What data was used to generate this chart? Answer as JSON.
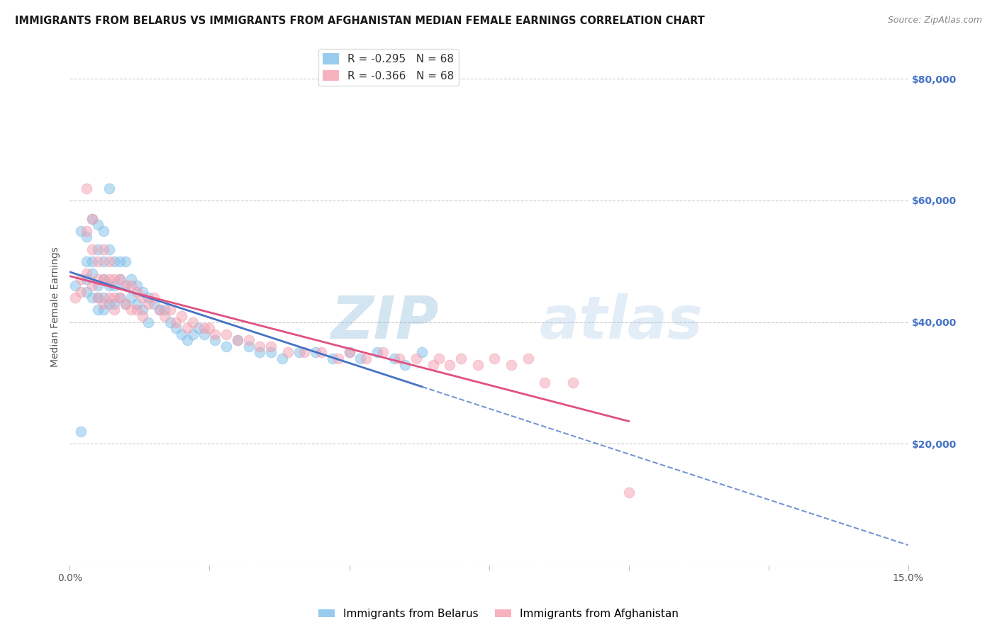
{
  "title": "IMMIGRANTS FROM BELARUS VS IMMIGRANTS FROM AFGHANISTAN MEDIAN FEMALE EARNINGS CORRELATION CHART",
  "source": "Source: ZipAtlas.com",
  "ylabel": "Median Female Earnings",
  "yticks": [
    0,
    20000,
    40000,
    60000,
    80000
  ],
  "ytick_labels": [
    "",
    "$20,000",
    "$40,000",
    "$60,000",
    "$80,000"
  ],
  "xlim": [
    0.0,
    0.15
  ],
  "ylim": [
    0,
    85000
  ],
  "watermark": "ZIPatlas",
  "belarus_color": "#7fbfea",
  "afghanistan_color": "#f4a0b0",
  "belarus_line_color": "#4472c4",
  "afghanistan_line_color": "#e05080",
  "scatter_alpha": 0.5,
  "scatter_size": 110,
  "legend_r1": "R = -0.295   N = 68",
  "legend_r2": "R = -0.366   N = 68",
  "legend_c1": "#7fbfea",
  "legend_c2": "#f4a0b0",
  "bottom_legend1": "Immigrants from Belarus",
  "bottom_legend2": "Immigrants from Afghanistan",
  "title_fontsize": 10.5,
  "source_fontsize": 9,
  "ylabel_fontsize": 10,
  "ytick_fontsize": 10,
  "xtick_fontsize": 10,
  "legend_fontsize": 11,
  "background_color": "#ffffff",
  "grid_color": "#cccccc",
  "right_yaxis_color": "#4472c4",
  "watermark_color": "#b0cce8",
  "watermark_alpha": 0.3,
  "belarus_x": [
    0.001,
    0.002,
    0.002,
    0.003,
    0.003,
    0.003,
    0.003,
    0.004,
    0.004,
    0.004,
    0.004,
    0.005,
    0.005,
    0.005,
    0.005,
    0.005,
    0.006,
    0.006,
    0.006,
    0.006,
    0.006,
    0.007,
    0.007,
    0.007,
    0.007,
    0.008,
    0.008,
    0.008,
    0.009,
    0.009,
    0.009,
    0.01,
    0.01,
    0.01,
    0.011,
    0.011,
    0.012,
    0.012,
    0.013,
    0.013,
    0.014,
    0.014,
    0.015,
    0.016,
    0.017,
    0.018,
    0.019,
    0.02,
    0.021,
    0.022,
    0.023,
    0.024,
    0.026,
    0.028,
    0.03,
    0.032,
    0.034,
    0.036,
    0.038,
    0.041,
    0.044,
    0.047,
    0.05,
    0.052,
    0.055,
    0.058,
    0.06,
    0.063
  ],
  "belarus_y": [
    46000,
    22000,
    55000,
    47000,
    45000,
    50000,
    54000,
    57000,
    48000,
    44000,
    50000,
    56000,
    52000,
    46000,
    44000,
    42000,
    55000,
    50000,
    47000,
    44000,
    42000,
    62000,
    52000,
    46000,
    43000,
    50000,
    46000,
    43000,
    50000,
    47000,
    44000,
    50000,
    46000,
    43000,
    47000,
    44000,
    46000,
    43000,
    45000,
    42000,
    44000,
    40000,
    43000,
    42000,
    42000,
    40000,
    39000,
    38000,
    37000,
    38000,
    39000,
    38000,
    37000,
    36000,
    37000,
    36000,
    35000,
    35000,
    34000,
    35000,
    35000,
    34000,
    35000,
    34000,
    35000,
    34000,
    33000,
    35000
  ],
  "afghanistan_x": [
    0.001,
    0.002,
    0.002,
    0.003,
    0.003,
    0.003,
    0.004,
    0.004,
    0.004,
    0.005,
    0.005,
    0.005,
    0.006,
    0.006,
    0.006,
    0.007,
    0.007,
    0.007,
    0.008,
    0.008,
    0.008,
    0.009,
    0.009,
    0.01,
    0.01,
    0.011,
    0.011,
    0.012,
    0.012,
    0.013,
    0.013,
    0.014,
    0.015,
    0.016,
    0.017,
    0.018,
    0.019,
    0.02,
    0.021,
    0.022,
    0.024,
    0.025,
    0.026,
    0.028,
    0.03,
    0.032,
    0.034,
    0.036,
    0.039,
    0.042,
    0.045,
    0.048,
    0.05,
    0.053,
    0.056,
    0.059,
    0.062,
    0.065,
    0.066,
    0.068,
    0.07,
    0.073,
    0.076,
    0.079,
    0.082,
    0.085,
    0.09,
    0.1
  ],
  "afghanistan_y": [
    44000,
    47000,
    45000,
    62000,
    55000,
    48000,
    57000,
    52000,
    46000,
    50000,
    47000,
    44000,
    52000,
    47000,
    43000,
    50000,
    47000,
    44000,
    47000,
    44000,
    42000,
    47000,
    44000,
    46000,
    43000,
    46000,
    42000,
    45000,
    42000,
    44000,
    41000,
    43000,
    44000,
    42000,
    41000,
    42000,
    40000,
    41000,
    39000,
    40000,
    39000,
    39000,
    38000,
    38000,
    37000,
    37000,
    36000,
    36000,
    35000,
    35000,
    35000,
    34000,
    35000,
    34000,
    35000,
    34000,
    34000,
    33000,
    34000,
    33000,
    34000,
    33000,
    34000,
    33000,
    34000,
    30000,
    30000,
    12000
  ]
}
